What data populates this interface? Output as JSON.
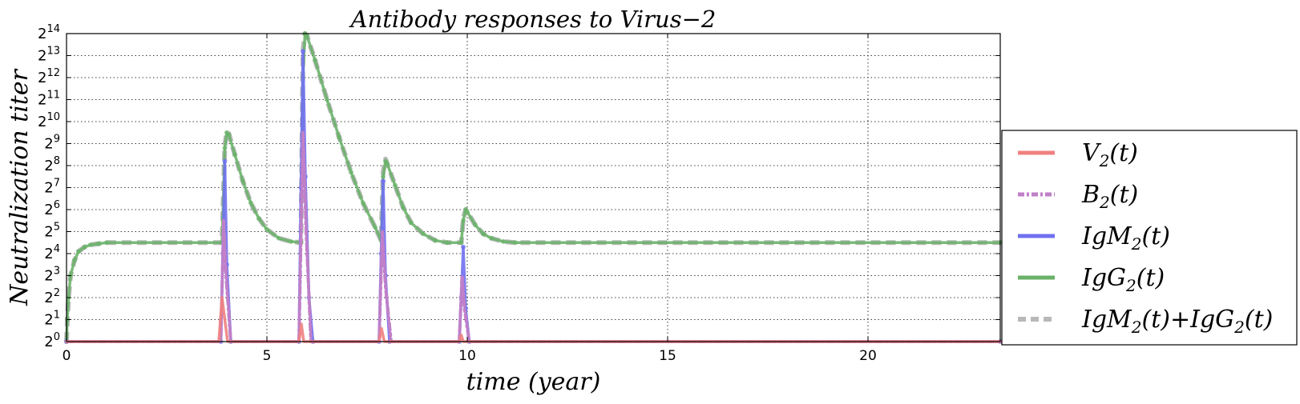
{
  "chart_data": {
    "type": "line",
    "title": "Antibody responses to Virus−2",
    "xlabel": "time (year)",
    "ylabel": "Neutralization  titer",
    "xlim": [
      0,
      23.3
    ],
    "ylim_log2": [
      0,
      14
    ],
    "y_scale": "log2",
    "x_ticks": [
      0,
      5,
      10,
      15,
      20
    ],
    "y_ticks_log2": [
      0,
      1,
      2,
      3,
      4,
      5,
      6,
      7,
      8,
      9,
      10,
      11,
      12,
      13,
      14
    ],
    "y_tick_base": "2",
    "grid": true,
    "legend_position": "right (outside plot)",
    "infections_at_years": [
      3.9,
      5.85,
      7.85,
      9.85
    ],
    "series": [
      {
        "name": "V",
        "name_sub": "2",
        "name_suffix": "(t)",
        "color": "#f08080",
        "style": "solid",
        "x": [
          0,
          3.8,
          3.88,
          3.95,
          4.02,
          5.8,
          5.86,
          5.92,
          7.8,
          7.86,
          7.93,
          9.8,
          9.85,
          9.9,
          23.3
        ],
        "y_log2": [
          0,
          0,
          2.0,
          1.0,
          0,
          0,
          0.8,
          0,
          0,
          0.6,
          0,
          0,
          0.3,
          0,
          0
        ]
      },
      {
        "name": "B",
        "name_sub": "2",
        "name_suffix": "(t)",
        "color": "#c080c8",
        "style": "dashdot",
        "x": [
          0,
          3.85,
          3.92,
          3.98,
          4.1,
          5.8,
          5.9,
          5.98,
          6.1,
          7.8,
          7.88,
          7.96,
          8.1,
          9.8,
          9.87,
          9.93,
          10.05,
          23.3
        ],
        "y_log2": [
          0,
          0,
          5.5,
          3.0,
          0,
          0,
          9.5,
          5.0,
          0,
          0,
          5.0,
          2.5,
          0,
          0,
          3.0,
          1.5,
          0,
          0
        ]
      },
      {
        "name": "IgM",
        "name_sub": "2",
        "name_suffix": "(t)",
        "color": "#7070f0",
        "style": "solid-markers",
        "x": [
          0,
          3.85,
          3.9,
          3.95,
          4.0,
          4.1,
          5.8,
          5.85,
          5.9,
          5.96,
          6.05,
          6.15,
          7.8,
          7.85,
          7.9,
          7.96,
          8.06,
          9.8,
          9.85,
          9.9,
          9.96,
          10.05,
          23.3
        ],
        "y_log2": [
          0,
          0,
          4.0,
          8.2,
          3.5,
          0,
          0,
          7.0,
          13.2,
          7.5,
          2.0,
          0,
          0,
          4.0,
          7.3,
          3.0,
          0,
          0,
          2.0,
          4.3,
          1.5,
          0,
          0
        ]
      },
      {
        "name": "IgG",
        "name_sub": "2",
        "name_suffix": "(t)",
        "color": "#6ab26a",
        "style": "solid-markers",
        "x": [
          0,
          0.02,
          0.05,
          0.1,
          0.2,
          0.3,
          0.45,
          0.6,
          0.8,
          1.0,
          3.88,
          3.95,
          4.0,
          4.05,
          4.2,
          4.4,
          4.6,
          4.8,
          5.0,
          5.3,
          5.6,
          5.85,
          5.9,
          5.95,
          6.0,
          6.2,
          6.5,
          6.8,
          7.1,
          7.4,
          7.7,
          7.85,
          7.9,
          7.96,
          8.0,
          8.2,
          8.4,
          8.6,
          8.9,
          9.2,
          9.5,
          9.85,
          9.9,
          9.96,
          10.0,
          10.2,
          10.4,
          10.6,
          10.9,
          11.2,
          23.3
        ],
        "y_log2": [
          0,
          1.0,
          2.0,
          3.0,
          3.7,
          4.1,
          4.3,
          4.4,
          4.45,
          4.5,
          4.5,
          8.8,
          9.5,
          9.4,
          8.5,
          7.3,
          6.3,
          5.6,
          5.1,
          4.7,
          4.55,
          4.5,
          12.0,
          14.0,
          13.9,
          12.8,
          11.0,
          9.3,
          7.7,
          6.3,
          5.2,
          4.6,
          7.5,
          8.2,
          8.1,
          7.1,
          6.1,
          5.4,
          4.9,
          4.6,
          4.5,
          4.5,
          5.5,
          6.0,
          5.9,
          5.3,
          4.9,
          4.7,
          4.55,
          4.5,
          4.5
        ]
      },
      {
        "name": "IgM",
        "name_sub": "2",
        "name_suffix": "(t)",
        "name_2": "IgG",
        "name_2_sub": "2",
        "name_2_suffix": "(t)",
        "color": "#b8b8b8",
        "style": "dashed",
        "x": [
          0,
          0.02,
          0.05,
          0.1,
          0.2,
          0.3,
          0.45,
          0.6,
          0.8,
          1.0,
          3.88,
          3.95,
          4.0,
          4.05,
          4.2,
          4.4,
          4.6,
          4.8,
          5.0,
          5.3,
          5.6,
          5.85,
          5.9,
          5.95,
          6.0,
          6.2,
          6.5,
          6.8,
          7.1,
          7.4,
          7.7,
          7.85,
          7.9,
          7.96,
          8.0,
          8.2,
          8.4,
          8.6,
          8.9,
          9.2,
          9.5,
          9.85,
          9.9,
          9.96,
          10.0,
          10.2,
          10.4,
          10.6,
          10.9,
          11.2,
          23.3
        ],
        "y_log2": [
          0,
          1.0,
          2.0,
          3.0,
          3.7,
          4.1,
          4.3,
          4.4,
          4.45,
          4.5,
          4.5,
          8.9,
          9.55,
          9.45,
          8.5,
          7.3,
          6.3,
          5.6,
          5.1,
          4.7,
          4.55,
          4.5,
          13.2,
          14.0,
          13.9,
          12.8,
          11.0,
          9.3,
          7.7,
          6.3,
          5.2,
          4.6,
          7.7,
          8.3,
          8.1,
          7.1,
          6.1,
          5.4,
          4.9,
          4.6,
          4.5,
          4.5,
          5.6,
          6.0,
          5.9,
          5.3,
          4.9,
          4.7,
          4.55,
          4.5,
          4.5
        ]
      }
    ]
  }
}
